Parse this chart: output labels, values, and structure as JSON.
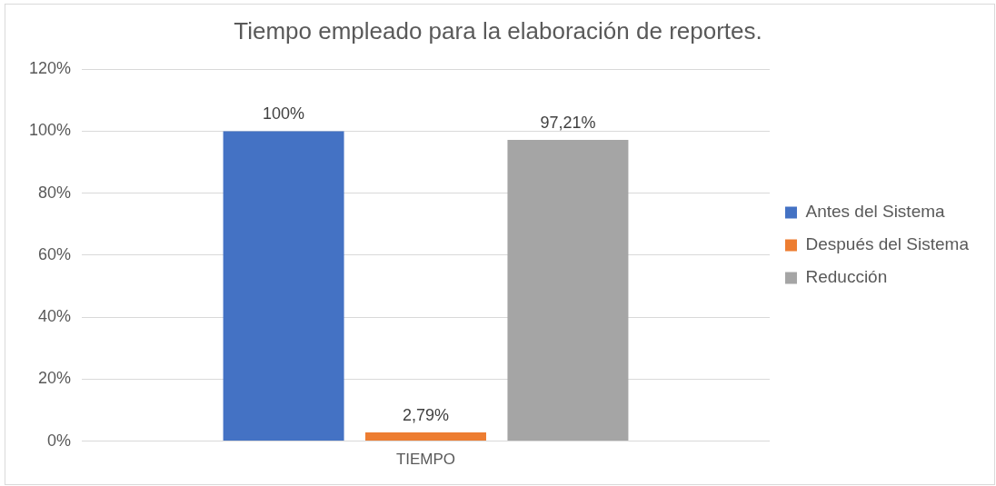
{
  "chart_data": {
    "type": "bar",
    "title": "Tiempo empleado para la elaboración de reportes.",
    "categories": [
      "TIEMPO"
    ],
    "series": [
      {
        "name": "Antes del Sistema",
        "color": "#4472c4",
        "values": [
          100
        ],
        "value_labels": [
          "100%"
        ]
      },
      {
        "name": "Después del Sistema",
        "color": "#ed7d31",
        "values": [
          2.79
        ],
        "value_labels": [
          "2,79%"
        ]
      },
      {
        "name": "Reducción",
        "color": "#a5a5a5",
        "values": [
          97.21
        ],
        "value_labels": [
          "97,21%"
        ]
      }
    ],
    "ylim": [
      0,
      120
    ],
    "yticks": [
      {
        "value": 0,
        "label": "0%"
      },
      {
        "value": 20,
        "label": "20%"
      },
      {
        "value": 40,
        "label": "40%"
      },
      {
        "value": 60,
        "label": "60%"
      },
      {
        "value": 80,
        "label": "80%"
      },
      {
        "value": 100,
        "label": "100%"
      },
      {
        "value": 120,
        "label": "120%"
      }
    ],
    "grid": "y",
    "legend": "right"
  }
}
